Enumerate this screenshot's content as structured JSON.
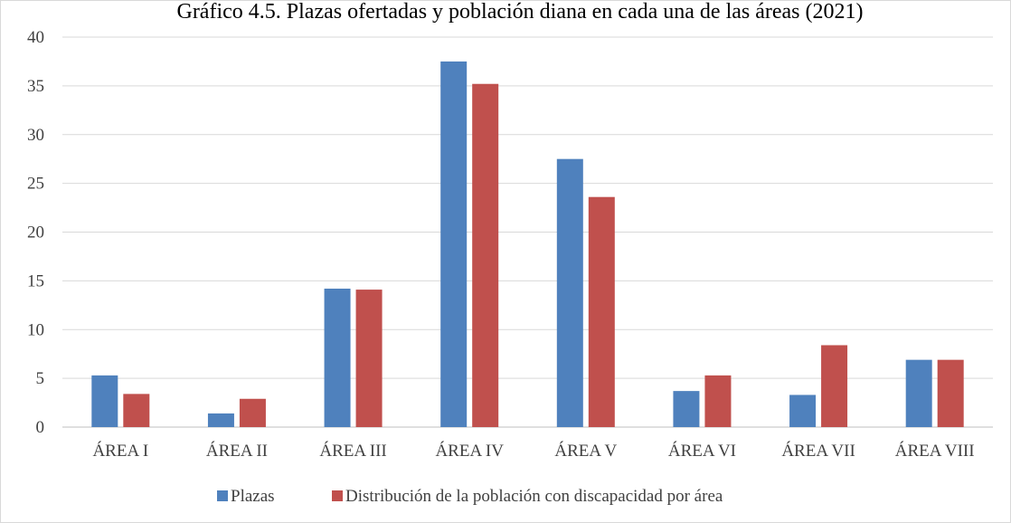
{
  "chart_data": {
    "type": "bar",
    "title": "Gráfico 4.5. Plazas ofertadas y población diana en cada una de las áreas (2021)",
    "categories": [
      "ÁREA I",
      "ÁREA II",
      "ÁREA III",
      "ÁREA IV",
      "ÁREA V",
      "ÁREA VI",
      "ÁREA VII",
      "ÁREA VIII"
    ],
    "series": [
      {
        "name": "Plazas",
        "color": "#4f81bd",
        "values": [
          5.3,
          1.4,
          14.2,
          37.5,
          27.5,
          3.7,
          3.3,
          6.9
        ]
      },
      {
        "name": "Distribución de la población con discapacidad por área",
        "color": "#c0504d",
        "values": [
          3.4,
          2.9,
          14.1,
          35.2,
          23.6,
          5.3,
          8.4,
          6.9
        ]
      }
    ],
    "ylim": [
      0,
      40
    ],
    "yticks": [
      0,
      5,
      10,
      15,
      20,
      25,
      30,
      35,
      40
    ],
    "xlabel": "",
    "ylabel": "",
    "grid": true,
    "legend_position": "bottom"
  }
}
